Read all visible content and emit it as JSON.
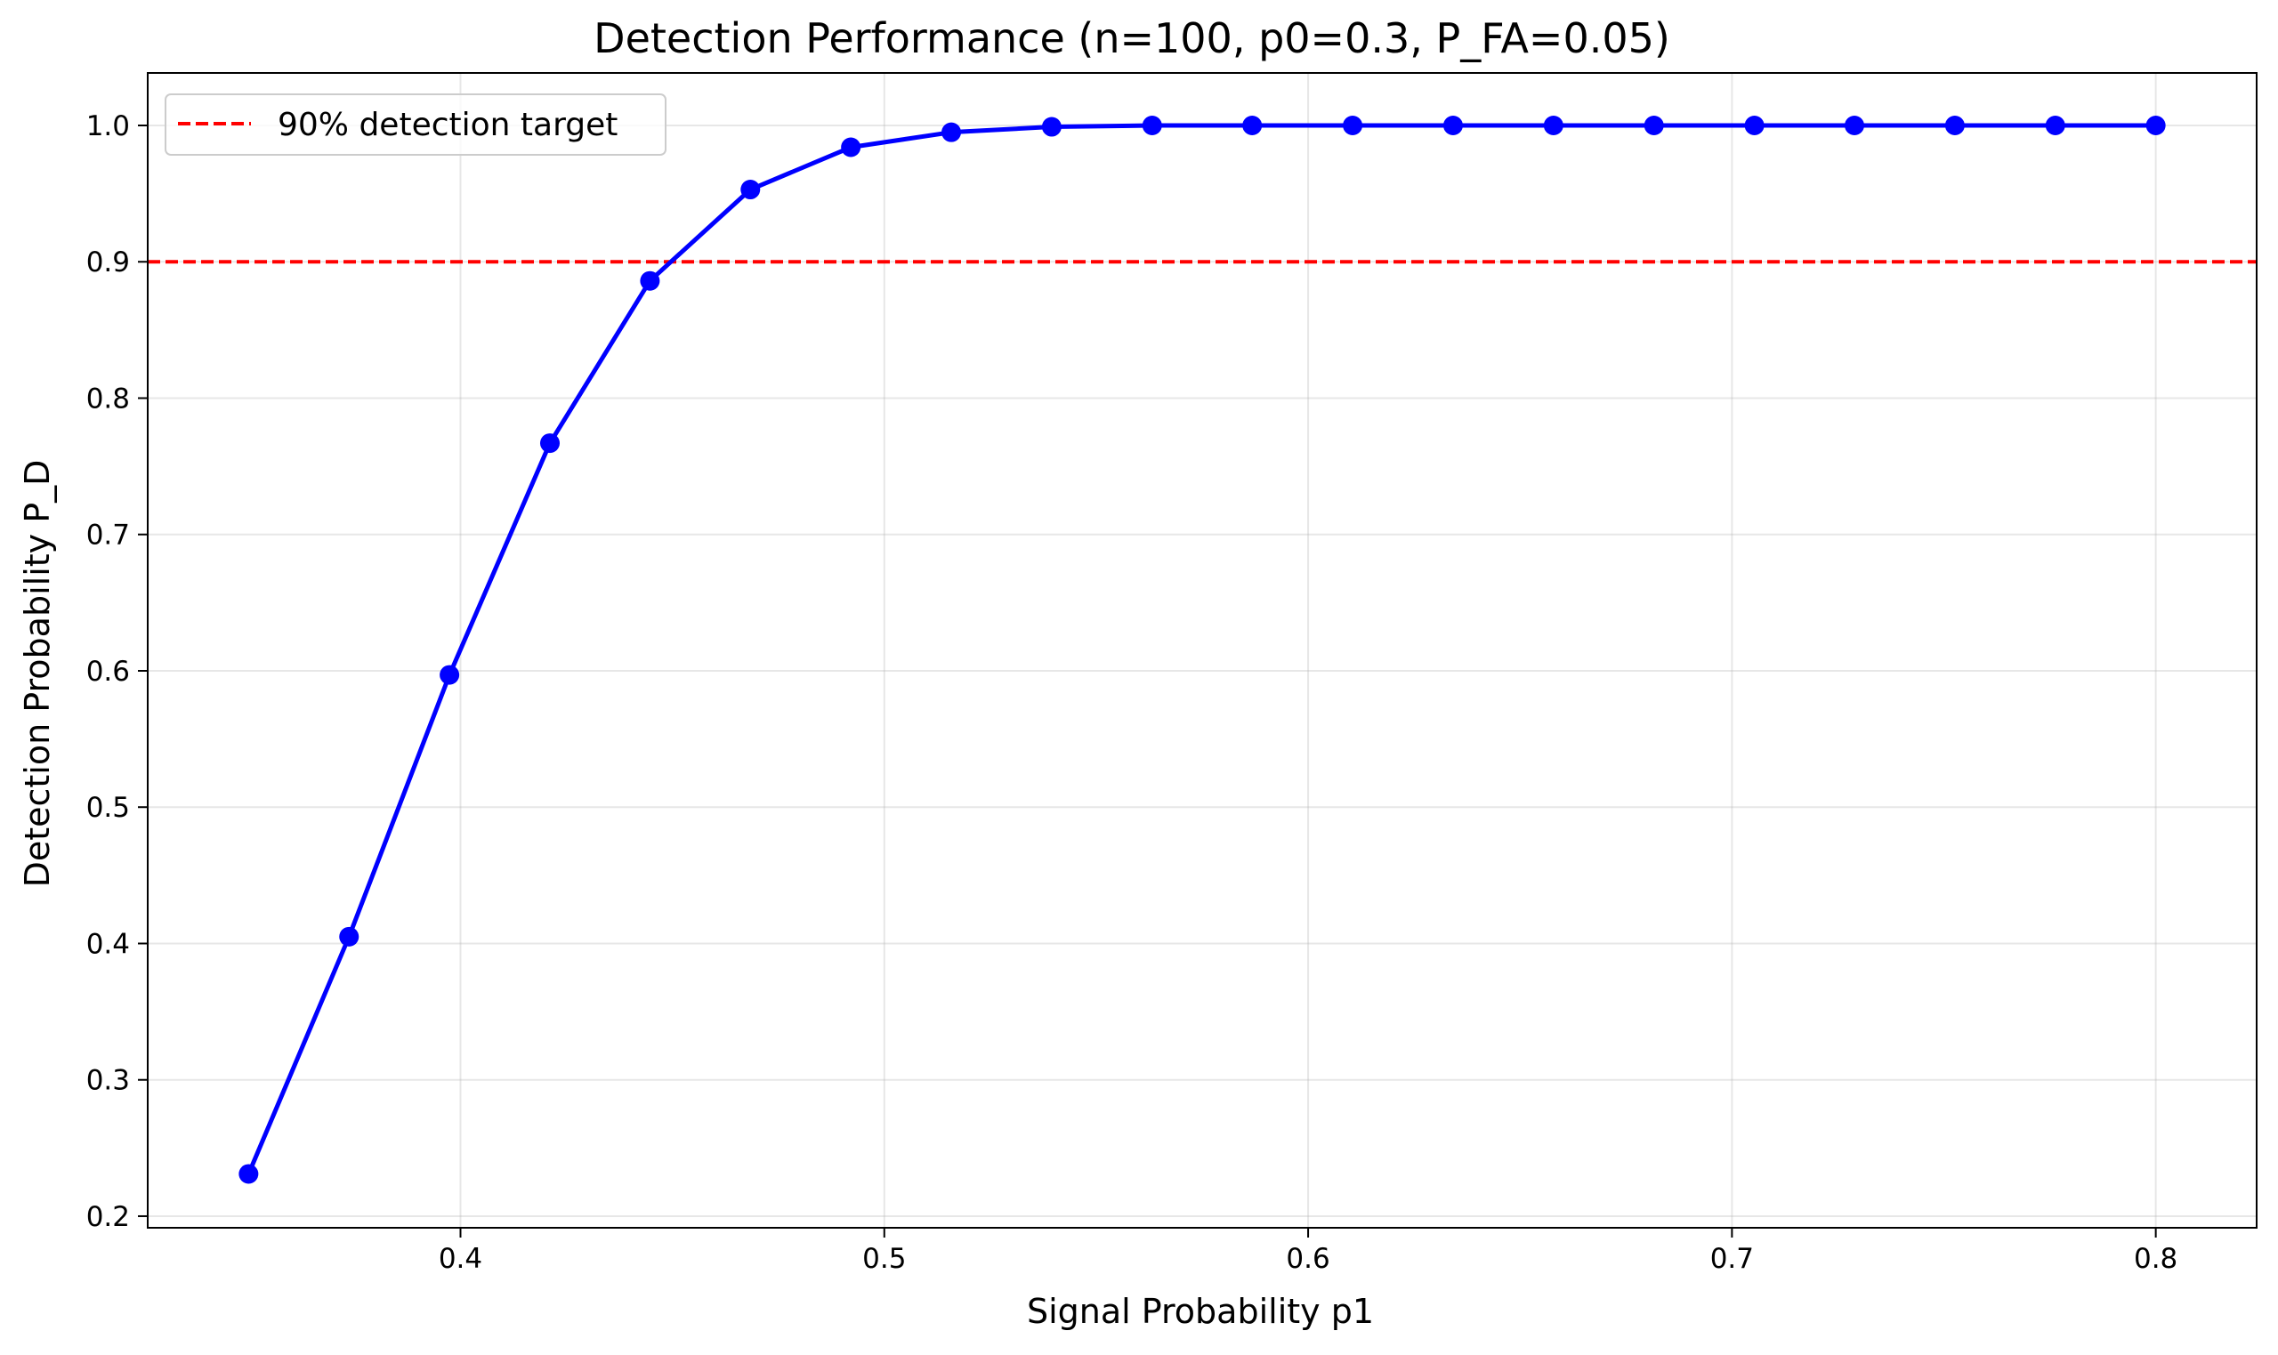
{
  "chart_data": {
    "type": "line",
    "title": "Detection Performance (n=100, p0=0.3, P_FA=0.05)",
    "xlabel": "Signal Probability p1",
    "ylabel": "Detection Probability P_D",
    "xlim": [
      0.3262,
      0.8238
    ],
    "ylim": [
      0.1915,
      1.0385
    ],
    "xticks": [
      0.4,
      0.5,
      0.6,
      0.7,
      0.8
    ],
    "yticks": [
      0.2,
      0.3,
      0.4,
      0.5,
      0.6,
      0.7,
      0.8,
      0.9,
      1.0
    ],
    "xtick_labels": [
      "0.4",
      "0.5",
      "0.6",
      "0.7",
      "0.8"
    ],
    "ytick_labels": [
      "0.2",
      "0.3",
      "0.4",
      "0.5",
      "0.6",
      "0.7",
      "0.8",
      "0.9",
      "1.0"
    ],
    "grid": true,
    "legend_position": "top-left",
    "series": [
      {
        "color": "#0000ff",
        "marker": "circle",
        "x": [
          0.35,
          0.3737,
          0.3974,
          0.4211,
          0.4447,
          0.4684,
          0.4921,
          0.5158,
          0.5395,
          0.5632,
          0.5868,
          0.6105,
          0.6342,
          0.6579,
          0.6816,
          0.7053,
          0.7289,
          0.7526,
          0.7763,
          0.8
        ],
        "y": [
          0.231,
          0.405,
          0.597,
          0.767,
          0.886,
          0.953,
          0.984,
          0.995,
          0.999,
          1.0,
          1.0,
          1.0,
          1.0,
          1.0,
          1.0,
          1.0,
          1.0,
          1.0,
          1.0,
          1.0
        ]
      }
    ],
    "reference_lines": [
      {
        "name": "90% detection target",
        "orientation": "horizontal",
        "y": 0.9,
        "color": "#ff0000",
        "style": "dashed"
      }
    ]
  }
}
